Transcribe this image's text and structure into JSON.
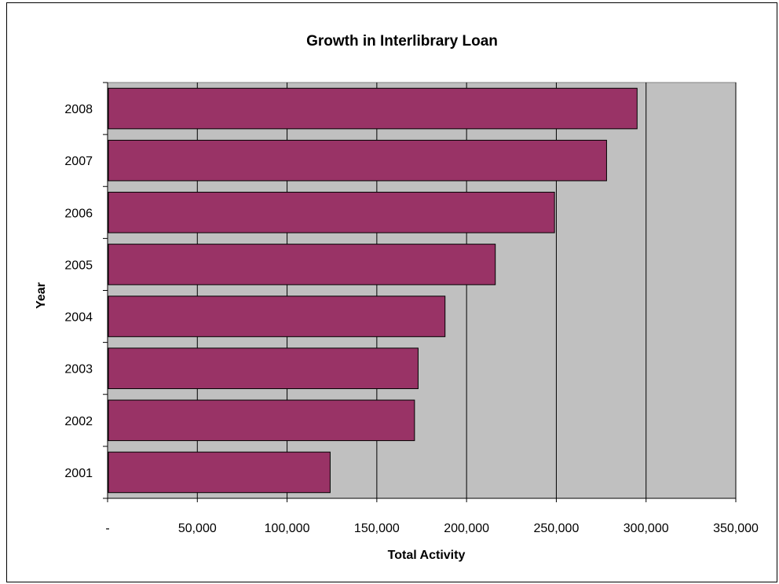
{
  "chart_data": {
    "type": "bar",
    "orientation": "horizontal",
    "title": "Growth in Interlibrary Loan",
    "xlabel": "Total Activity",
    "ylabel": "Year",
    "categories": [
      "2001",
      "2002",
      "2003",
      "2004",
      "2005",
      "2006",
      "2007",
      "2008"
    ],
    "values": [
      124000,
      171000,
      173000,
      188000,
      216000,
      249000,
      278000,
      295000
    ],
    "xlim": [
      0,
      350000
    ],
    "x_tick_labels": [
      "-",
      "50,000",
      "100,000",
      "150,000",
      "200,000",
      "250,000",
      "300,000",
      "350,000"
    ],
    "grid": true,
    "legend": "none",
    "colors": {
      "bar": "#993366",
      "plot_background": "#c0c0c0"
    }
  }
}
